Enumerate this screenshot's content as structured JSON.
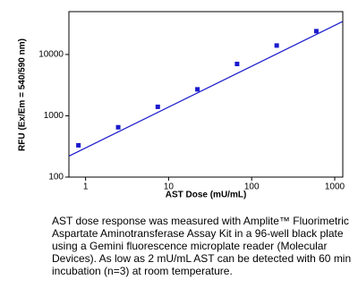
{
  "chart_data": {
    "type": "scatter",
    "xlabel": "AST Dose (mU/mL)",
    "ylabel": "RFU (Ex/Em = 540/590 nm)",
    "log_x": true,
    "log_y": true,
    "xlim": [
      0.63,
      1250
    ],
    "ylim": [
      100,
      50000
    ],
    "xticks": [
      1,
      10,
      100,
      1000
    ],
    "yticks": [
      100,
      1000,
      10000
    ],
    "series": [
      {
        "color": "#1a1acc",
        "marker": "square",
        "x": [
          0.82,
          2.47,
          7.4,
          22.2,
          66.7,
          200,
          600
        ],
        "values": [
          330,
          650,
          1400,
          2700,
          7000,
          14000,
          24000
        ]
      },
      {
        "color": "#1a1acc",
        "line": true,
        "x": [
          0.63,
          1250
        ],
        "values": [
          220,
          34600
        ]
      }
    ]
  },
  "caption": "AST dose response was measured with Amplite™ Fluorimetric Aspartate Aminotransferase Assay Kit in a 96-well black plate using a Gemini fluorescence microplate reader (Molecular Devices). As low as 2 mU/mL AST can be detected with 60 min incubation (n=3) at room temperature."
}
